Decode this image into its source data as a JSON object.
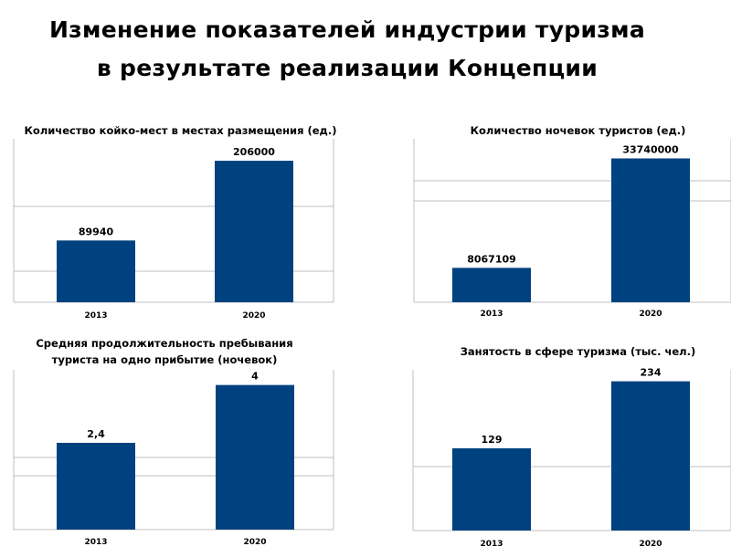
{
  "page": {
    "title_line1": "Изменение показателей индустрии туризма",
    "title_line2": "в результате реализации Концепции"
  },
  "colors": {
    "bar": "#00427F",
    "grid": "#BFBFBF",
    "axis": "#BFBFBF"
  },
  "chart_data": [
    {
      "type": "bar",
      "title": "Количество койко-мест в местах размещения (ед.)",
      "categories": [
        "2013",
        "2020"
      ],
      "values": [
        89940,
        206000
      ],
      "data_labels": [
        "89940",
        "206000"
      ],
      "xlabel": "",
      "ylabel": "",
      "grid": true,
      "legend": "none"
    },
    {
      "type": "bar",
      "title": "Количество ночевок туристов (ед.)",
      "categories": [
        "2013",
        "2020"
      ],
      "values": [
        8067109,
        33740000
      ],
      "data_labels": [
        "8067109",
        "33740000"
      ],
      "xlabel": "",
      "ylabel": "",
      "grid": true,
      "legend": "none"
    },
    {
      "type": "bar",
      "title": "Средняя продолжительность пребывания\n туриста  на одно прибытие (ночевок)",
      "categories": [
        "2013",
        "2020"
      ],
      "values": [
        2.4,
        4
      ],
      "data_labels": [
        "2,4",
        "4"
      ],
      "xlabel": "",
      "ylabel": "",
      "grid": true,
      "legend": "none"
    },
    {
      "type": "bar",
      "title": "Занятость в сфере туризма (тыс. чел.)",
      "categories": [
        "2013",
        "2020"
      ],
      "values": [
        129,
        234
      ],
      "data_labels": [
        "129",
        "234"
      ],
      "xlabel": "",
      "ylabel": "",
      "grid": true,
      "legend": "none"
    }
  ]
}
